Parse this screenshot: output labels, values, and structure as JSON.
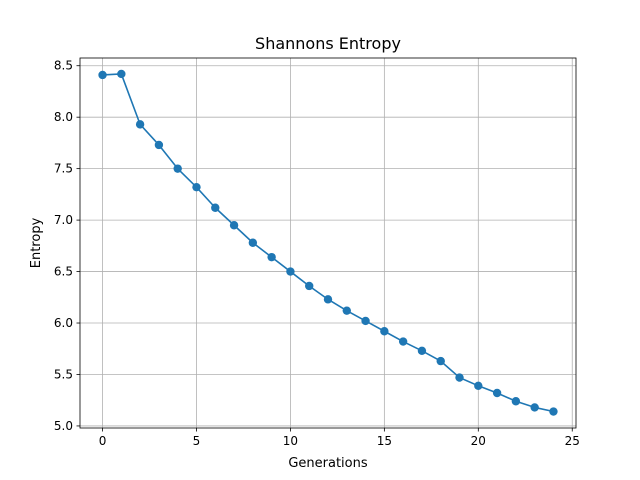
{
  "chart_data": {
    "type": "line",
    "title": "Shannons Entropy",
    "xlabel": "Generations",
    "ylabel": "Entropy",
    "grid": true,
    "legend": "none",
    "marker": "circle",
    "colors": {
      "series": "#1f77b4",
      "grid": "#b0b0b0",
      "axes": "#000000"
    },
    "xlim": [
      -1.2,
      25.2
    ],
    "ylim": [
      4.98,
      8.575
    ],
    "x_ticks": [
      0,
      5,
      10,
      15,
      20,
      25
    ],
    "y_ticks": [
      5.0,
      5.5,
      6.0,
      6.5,
      7.0,
      7.5,
      8.0,
      8.5
    ],
    "x_tick_labels": [
      "0",
      "5",
      "10",
      "15",
      "20",
      "25"
    ],
    "y_tick_labels": [
      "5.0",
      "5.5",
      "6.0",
      "6.5",
      "7.0",
      "7.5",
      "8.0",
      "8.5"
    ],
    "series": [
      {
        "x": [
          0,
          1,
          2,
          3,
          4,
          5,
          6,
          7,
          8,
          9,
          10,
          11,
          12,
          13,
          14,
          15,
          16,
          17,
          18,
          19,
          20,
          21,
          22,
          23,
          24
        ],
        "y": [
          8.41,
          8.42,
          7.93,
          7.73,
          7.5,
          7.32,
          7.12,
          6.95,
          6.78,
          6.64,
          6.5,
          6.36,
          6.23,
          6.12,
          6.02,
          5.92,
          5.82,
          5.73,
          5.63,
          5.47,
          5.39,
          5.32,
          5.24,
          5.18,
          5.14
        ]
      }
    ]
  }
}
